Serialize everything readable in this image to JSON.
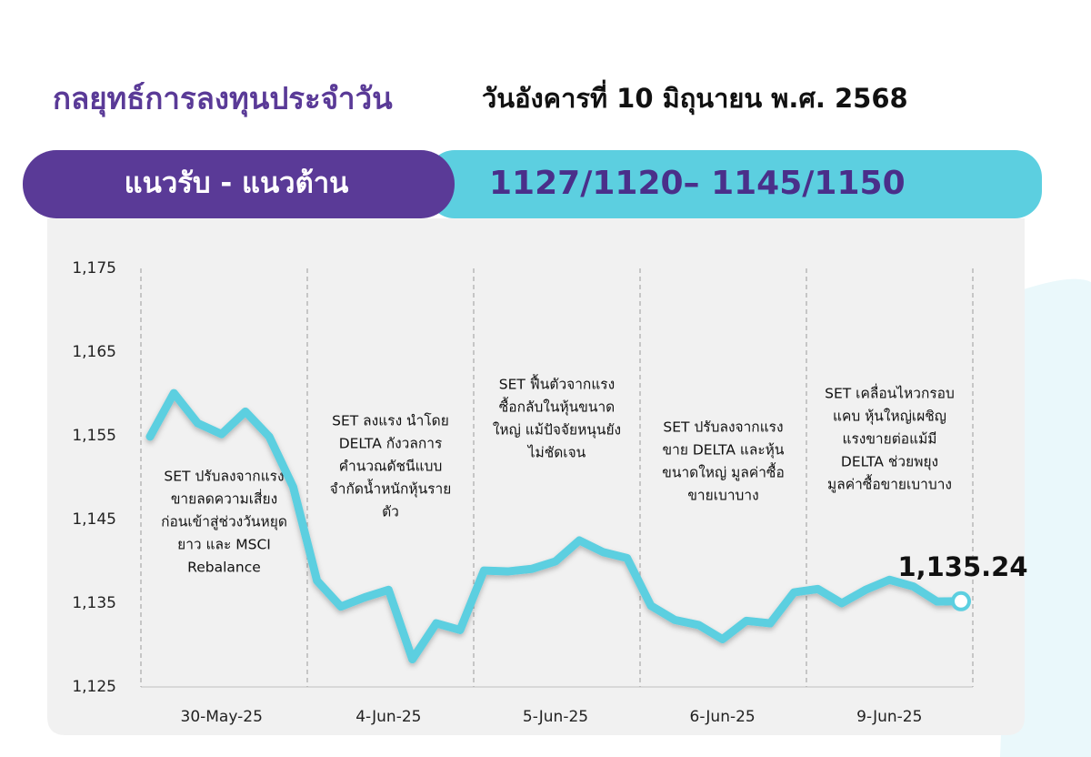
{
  "header": {
    "title": "กลยุทธ์การลงทุนประจำวัน",
    "date": "วันอังคารที่ 10 มิถุนายน พ.ศ. 2568"
  },
  "banner": {
    "label": "แนวรับ - แนวต้าน",
    "value": "1127/1120– 1145/1150"
  },
  "chart_data": {
    "type": "line",
    "categories": [
      null,
      null,
      null,
      "30-May-25",
      null,
      null,
      null,
      null,
      null,
      null,
      "4-Jun-25",
      null,
      null,
      null,
      null,
      null,
      null,
      "5-Jun-25",
      null,
      null,
      null,
      null,
      null,
      null,
      "6-Jun-25",
      null,
      null,
      null,
      null,
      null,
      null,
      "9-Jun-25",
      null,
      null,
      null
    ],
    "series": [
      {
        "name": "SET",
        "color": "#5ccfe0",
        "values": [
          1154.9,
          1160.1,
          1156.5,
          1155.2,
          1157.9,
          1154.9,
          1148.9,
          1137.7,
          1134.6,
          1135.7,
          1136.6,
          1128.3,
          1132.6,
          1131.8,
          1138.9,
          1138.8,
          1139.1,
          1140.0,
          1142.5,
          1141.1,
          1140.4,
          1134.7,
          1133.0,
          1132.4,
          1130.7,
          1132.9,
          1132.6,
          1136.3,
          1136.7,
          1135.0,
          1136.6,
          1137.8,
          1137.0,
          1135.2,
          1135.24
        ],
        "value_labels": [
          null,
          null,
          null,
          null,
          null,
          null,
          null,
          null,
          null,
          null,
          null,
          null,
          null,
          null,
          null,
          null,
          null,
          null,
          null,
          null,
          null,
          null,
          null,
          null,
          null,
          null,
          null,
          null,
          null,
          null,
          null,
          null,
          null,
          null,
          "1,135.24"
        ]
      }
    ],
    "ylim": [
      1125,
      1175
    ],
    "yticks": [
      {
        "value": 1125,
        "label": "1,125"
      },
      {
        "value": 1135,
        "label": "1,135"
      },
      {
        "value": 1145,
        "label": "1,145"
      },
      {
        "value": 1155,
        "label": "1,155"
      },
      {
        "value": 1165,
        "label": "1,165"
      },
      {
        "value": 1175,
        "label": "1,175"
      }
    ],
    "grid": false,
    "annotations": [
      {
        "lines": [
          "SET ปรับลงจากแรง",
          "ขายลดความเสี่ยง",
          "ก่อนเข้าสู่ช่วงวันหยุด",
          "ยาว และ MSCI",
          "Rebalance"
        ]
      },
      {
        "lines": [
          "SET ลงแรง นำโดย",
          "DELTA กังวลการ",
          "คำนวณดัชนีแบบ",
          "จำกัดน้ำหนักหุ้นราย",
          "ตัว"
        ]
      },
      {
        "lines": [
          "SET ฟื้นตัวจากแรง",
          "ซื้อกลับในหุ้นขนาด",
          "ใหญ่ แม้ปัจจัยหนุนยัง",
          "ไม่ชัดเจน"
        ]
      },
      {
        "lines": [
          "SET ปรับลงจากแรง",
          "ขาย DELTA และหุ้น",
          "ขนาดใหญ่ มูลค่าซื้อ",
          "ขายเบาบาง"
        ]
      },
      {
        "lines": [
          "SET เคลื่อนไหวกรอบ",
          "แคบ หุ้นใหญ่เผชิญ",
          "แรงขายต่อแม้มี",
          "DELTA ช่วยพยุง",
          "มูลค่าซื้อขายเบาบาง"
        ]
      }
    ]
  }
}
